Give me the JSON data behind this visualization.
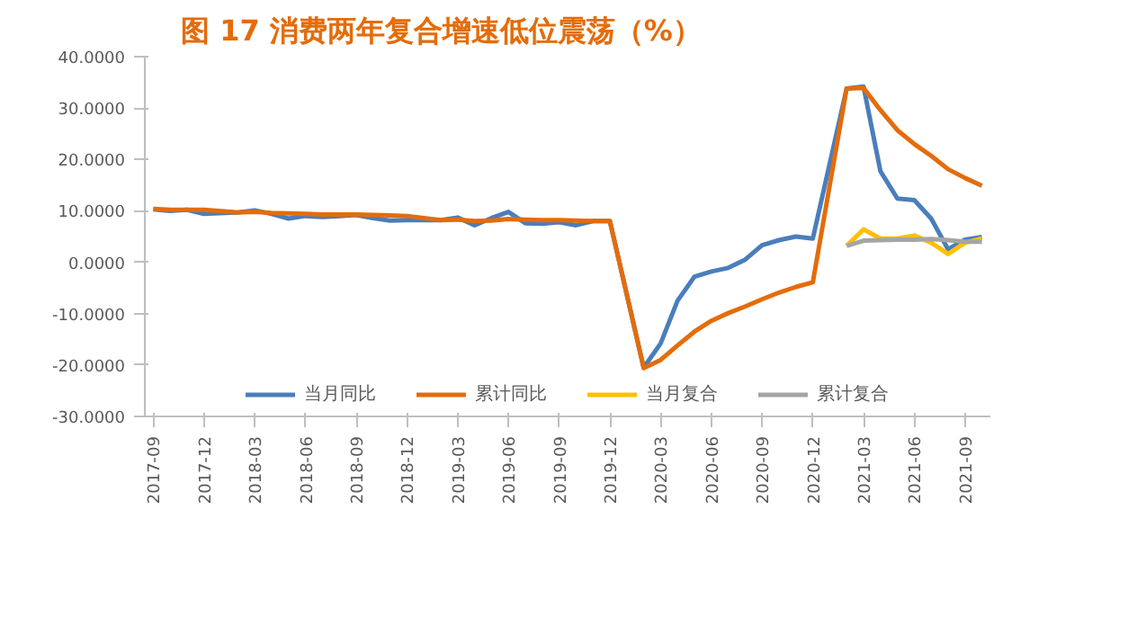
{
  "chart_data": {
    "type": "line",
    "title": "图 17  消费两年复合增速低位震荡（%）",
    "categories": [
      "2017-09",
      null,
      null,
      "2017-12",
      null,
      null,
      "2018-03",
      null,
      null,
      "2018-06",
      null,
      null,
      "2018-09",
      null,
      null,
      "2018-12",
      null,
      null,
      "2019-03",
      null,
      null,
      "2019-06",
      null,
      null,
      "2019-09",
      null,
      null,
      "2019-12",
      null,
      null,
      "2020-03",
      null,
      null,
      "2020-06",
      null,
      null,
      "2020-09",
      null,
      null,
      "2020-12",
      null,
      null,
      "2021-03",
      null,
      null,
      "2021-06",
      null,
      null,
      "2021-09",
      null
    ],
    "series": [
      {
        "name": "当月同比",
        "color": "#4a7ebb",
        "values": [
          10.3,
          10.0,
          10.2,
          9.4,
          null,
          9.7,
          10.1,
          9.4,
          8.5,
          9.0,
          8.8,
          9.0,
          9.2,
          8.6,
          8.1,
          8.2,
          null,
          8.2,
          8.7,
          7.2,
          8.6,
          9.8,
          7.6,
          7.5,
          7.8,
          7.2,
          8.0,
          8.0,
          null,
          -20.5,
          -15.8,
          -7.5,
          -2.8,
          -1.8,
          -1.1,
          0.5,
          3.3,
          4.3,
          5.0,
          4.6,
          null,
          33.8,
          34.2,
          17.7,
          12.4,
          12.1,
          8.5,
          2.5,
          4.4,
          4.9
        ]
      },
      {
        "name": "累计同比",
        "color": "#e46c0a",
        "values": [
          10.4,
          10.2,
          10.2,
          10.2,
          null,
          9.7,
          9.8,
          9.6,
          9.5,
          9.4,
          9.3,
          9.3,
          9.3,
          9.2,
          9.1,
          9.0,
          null,
          8.2,
          8.3,
          8.0,
          8.1,
          8.4,
          8.3,
          8.2,
          8.2,
          8.1,
          8.0,
          8.0,
          null,
          -20.6,
          -19.0,
          -16.2,
          -13.5,
          -11.4,
          -9.9,
          -8.6,
          -7.2,
          -5.9,
          -4.8,
          -3.9,
          null,
          33.8,
          33.9,
          29.6,
          25.7,
          23.0,
          20.7,
          18.1,
          16.4,
          14.9
        ]
      },
      {
        "name": "当月复合",
        "color": "#ffc000",
        "values": [
          null,
          null,
          null,
          null,
          null,
          null,
          null,
          null,
          null,
          null,
          null,
          null,
          null,
          null,
          null,
          null,
          null,
          null,
          null,
          null,
          null,
          null,
          null,
          null,
          null,
          null,
          null,
          null,
          null,
          null,
          null,
          null,
          null,
          null,
          null,
          null,
          null,
          null,
          null,
          null,
          null,
          3.2,
          6.4,
          4.6,
          4.6,
          5.2,
          3.8,
          1.6,
          3.8,
          4.6
        ]
      },
      {
        "name": "累计复合",
        "color": "#a5a5a5",
        "values": [
          null,
          null,
          null,
          null,
          null,
          null,
          null,
          null,
          null,
          null,
          null,
          null,
          null,
          null,
          null,
          null,
          null,
          null,
          null,
          null,
          null,
          null,
          null,
          null,
          null,
          null,
          null,
          null,
          null,
          null,
          null,
          null,
          null,
          null,
          null,
          null,
          null,
          null,
          null,
          null,
          null,
          3.2,
          4.2,
          4.3,
          4.4,
          4.4,
          4.5,
          4.3,
          4.0,
          4.0
        ]
      }
    ],
    "ylim": [
      -30,
      40
    ],
    "yticks": [
      {
        "value": -30,
        "label": "-30.0000"
      },
      {
        "value": -20,
        "label": "-20.0000"
      },
      {
        "value": -10,
        "label": "-10.0000"
      },
      {
        "value": 0,
        "label": "0.0000"
      },
      {
        "value": 10,
        "label": "10.0000"
      },
      {
        "value": 20,
        "label": "20.0000"
      },
      {
        "value": 30,
        "label": "30.0000"
      },
      {
        "value": 40,
        "label": "40.0000"
      }
    ],
    "grid": false,
    "legend": "bottom",
    "marker": "none",
    "line_style": "solid"
  }
}
